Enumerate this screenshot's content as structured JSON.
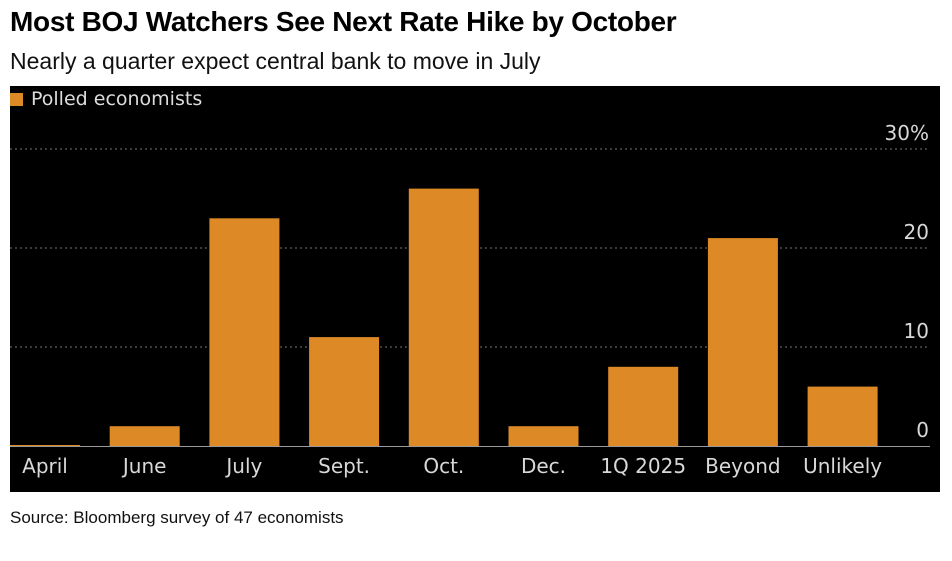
{
  "header": {
    "title": "Most BOJ Watchers See Next Rate Hike by October",
    "subtitle": "Nearly a quarter expect central bank to move in July"
  },
  "legend": {
    "label": "Polled economists"
  },
  "footer": {
    "source": "Source: Bloomberg survey of 47 economists"
  },
  "colors": {
    "bar": "#dd8a26",
    "background": "#000000",
    "grid": "#777777",
    "text": "#d8d8d8"
  },
  "chart_data": {
    "type": "bar",
    "title": "Most BOJ Watchers See Next Rate Hike by October",
    "subtitle": "Nearly a quarter expect central bank to move in July",
    "categories": [
      "April",
      "June",
      "July",
      "Sept.",
      "Oct.",
      "Dec.",
      "1Q 2025",
      "Beyond",
      "Unlikely"
    ],
    "series": [
      {
        "name": "Polled economists",
        "values": [
          0,
          2,
          23,
          11,
          26,
          2,
          8,
          21,
          6
        ]
      }
    ],
    "yticks": [
      {
        "value": 0,
        "label": "0"
      },
      {
        "value": 10,
        "label": "10"
      },
      {
        "value": 20,
        "label": "20"
      },
      {
        "value": 30,
        "label": "30%"
      }
    ],
    "ylim": [
      0,
      30
    ],
    "xlabel": "",
    "ylabel": "",
    "grid": true,
    "legend_position": "top-left"
  }
}
